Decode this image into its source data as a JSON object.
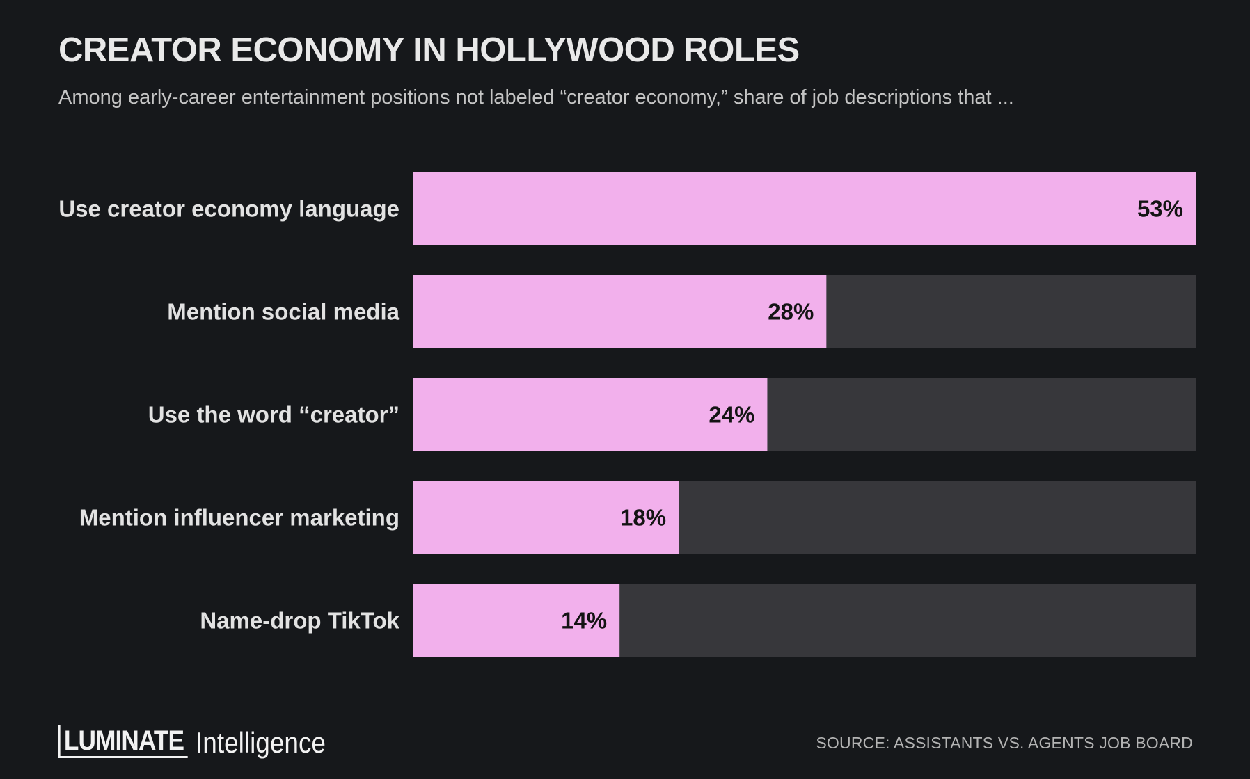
{
  "chart_data": {
    "type": "bar",
    "orientation": "horizontal",
    "title": "CREATOR ECONOMY IN HOLLYWOOD ROLES",
    "subtitle": "Among early-career entertainment positions not labeled “creator economy,” share of job descriptions that ...",
    "categories": [
      "Use creator economy language",
      "Mention social media",
      "Use the word “creator”",
      "Mention influencer marketing",
      "Name-drop TikTok"
    ],
    "values": [
      53,
      28,
      24,
      18,
      14
    ],
    "value_labels": [
      "53%",
      "28%",
      "24%",
      "18%",
      "14%"
    ],
    "xlim": [
      0,
      53
    ],
    "bar_color": "#f2b0ec",
    "track_color": "#37373b",
    "grid": false,
    "legend": "none"
  },
  "branding": {
    "brand_strong": "LUMINATE",
    "brand_light": "Intelligence"
  },
  "source": "SOURCE: ASSISTANTS VS. AGENTS JOB BOARD"
}
